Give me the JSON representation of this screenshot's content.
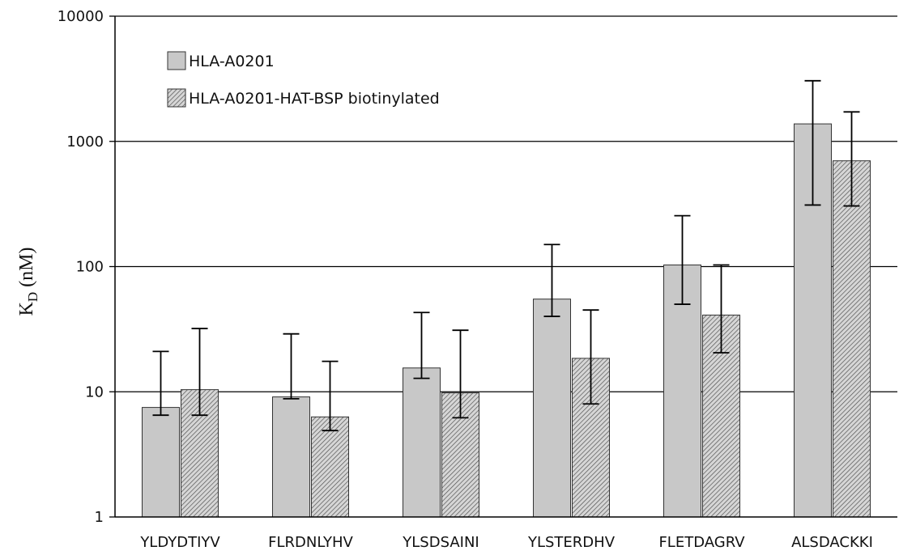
{
  "chart_data": {
    "type": "bar",
    "yscale": "log",
    "ylim": [
      1,
      10000
    ],
    "yticks": [
      1,
      10,
      100,
      1000,
      10000
    ],
    "ytick_labels": [
      "1",
      "10",
      "100",
      "1000",
      "10000"
    ],
    "ylabel": {
      "main": "K",
      "sub": "D",
      "unit": " (nM)"
    },
    "xlabel": "",
    "grid": "horizontal major gridlines",
    "legend_position": "top-left",
    "categories": [
      "YLDYDTIYV",
      "FLRDNLYHV",
      "YLSDSAINI",
      "YLSTERDHV",
      "FLETDAGRV",
      "ALSDACKKI"
    ],
    "series": [
      {
        "name": "HLA-A0201",
        "fill": "#c8c8c8",
        "pattern": "solid",
        "values": [
          7.5,
          9.1,
          15.5,
          55,
          103,
          1380
        ],
        "error_low": [
          6.5,
          8.8,
          12.8,
          40,
          50,
          310
        ],
        "error_high": [
          21,
          29,
          43,
          150,
          255,
          3050
        ]
      },
      {
        "name": "HLA-A0201-HAT-BSP biotinylated",
        "fill": "#d4d4d4",
        "pattern": "diagonal-hatch",
        "values": [
          10.4,
          6.3,
          9.8,
          18.5,
          41,
          700
        ],
        "error_low": [
          6.5,
          4.9,
          6.2,
          8.0,
          20.5,
          305
        ],
        "error_high": [
          32,
          17.5,
          31,
          45,
          103,
          1720
        ]
      }
    ]
  }
}
